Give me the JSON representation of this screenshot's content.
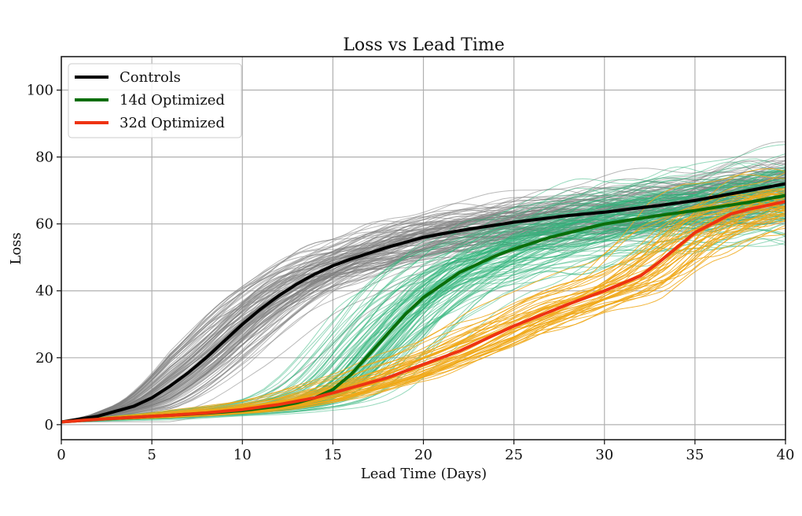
{
  "chart_data": {
    "type": "line",
    "title": "Loss vs Lead Time",
    "xlabel": "Lead Time (Days)",
    "ylabel": "Loss",
    "xlim": [
      0,
      40
    ],
    "ylim": [
      -4.5,
      110
    ],
    "xticks": [
      0,
      5,
      10,
      15,
      20,
      25,
      30,
      35,
      40
    ],
    "yticks": [
      0,
      20,
      40,
      60,
      80,
      100
    ],
    "grid": true,
    "legend": {
      "placement": "top-left",
      "entries": [
        {
          "label": "Controls",
          "color": "#000000"
        },
        {
          "label": "14d Optimized",
          "color": "#0a6e0a"
        },
        {
          "label": "32d Optimized",
          "color": "#ee3311"
        }
      ]
    },
    "series": [
      {
        "name": "Controls",
        "color": "#000000",
        "ensemble_color": "#7f7f7f",
        "ensemble_spread_max": 15,
        "x": [
          0,
          2,
          4,
          5,
          6,
          7,
          8,
          9,
          10,
          11,
          12,
          13,
          14,
          15,
          16,
          18,
          20,
          22,
          25,
          28,
          30,
          33,
          35,
          38,
          40
        ],
        "values": [
          0.8,
          2.5,
          5.5,
          8,
          11.5,
          15.5,
          20,
          25,
          30,
          34.5,
          38.5,
          42,
          45,
          47.5,
          49.5,
          53,
          56,
          58,
          60.5,
          62.5,
          63.5,
          65.5,
          67,
          70,
          72
        ]
      },
      {
        "name": "14d Optimized",
        "color": "#0a6e0a",
        "ensemble_color": "#2db37a",
        "ensemble_spread_max": 18,
        "x": [
          0,
          2,
          4,
          6,
          8,
          10,
          12,
          13,
          14,
          15,
          16,
          17,
          18,
          19,
          20,
          22,
          24,
          25,
          27,
          30,
          33,
          35,
          38,
          40
        ],
        "values": [
          0.8,
          1.6,
          2.2,
          2.8,
          3.4,
          4.2,
          5.5,
          6.5,
          8,
          10.5,
          15,
          21,
          27,
          33,
          38,
          45.5,
          50.5,
          52.5,
          56,
          60,
          62.5,
          64,
          66.5,
          68.5
        ]
      },
      {
        "name": "32d Optimized",
        "color": "#ee3311",
        "ensemble_color": "#f0a818",
        "ensemble_spread_max": 16,
        "x": [
          0,
          2,
          4,
          6,
          8,
          10,
          12,
          14,
          15,
          16,
          18,
          20,
          22,
          25,
          28,
          30,
          32,
          33,
          35,
          37,
          38,
          40
        ],
        "values": [
          0.8,
          1.6,
          2.2,
          2.8,
          3.5,
          4.5,
          6,
          8,
          9.5,
          11,
          14,
          18,
          22,
          29.5,
          36,
          40,
          44.5,
          48.5,
          57.4,
          63,
          64.4,
          66.7
        ]
      }
    ]
  }
}
